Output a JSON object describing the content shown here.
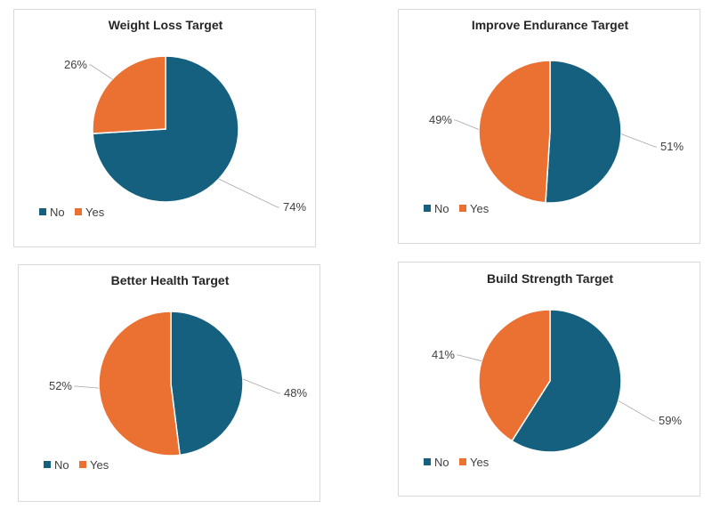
{
  "colors": {
    "No": "#16607f",
    "Yes": "#ea7132"
  },
  "chart_data": [
    {
      "type": "pie",
      "title": "Weight Loss Target",
      "categories": [
        "No",
        "Yes"
      ],
      "values": [
        74,
        26
      ],
      "labels": [
        "74%",
        "26%"
      ],
      "legend": [
        "No",
        "Yes"
      ],
      "legend_position": "bottom-left"
    },
    {
      "type": "pie",
      "title": "Improve Endurance Target",
      "categories": [
        "No",
        "Yes"
      ],
      "values": [
        51,
        49
      ],
      "labels": [
        "51%",
        "49%"
      ],
      "legend": [
        "No",
        "Yes"
      ],
      "legend_position": "bottom-left"
    },
    {
      "type": "pie",
      "title": "Better Health Target",
      "categories": [
        "No",
        "Yes"
      ],
      "values": [
        48,
        52
      ],
      "labels": [
        "48%",
        "52%"
      ],
      "legend": [
        "No",
        "Yes"
      ],
      "legend_position": "bottom-left"
    },
    {
      "type": "pie",
      "title": "Build Strength Target",
      "categories": [
        "No",
        "Yes"
      ],
      "values": [
        59,
        41
      ],
      "labels": [
        "59%",
        "41%"
      ],
      "legend": [
        "No",
        "Yes"
      ],
      "legend_position": "bottom-left"
    }
  ]
}
